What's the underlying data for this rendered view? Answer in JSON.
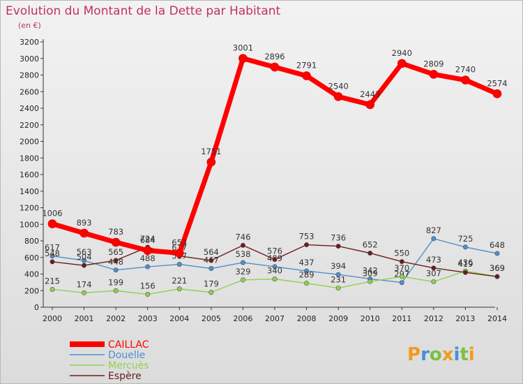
{
  "chart_data": {
    "type": "line",
    "title": "Evolution du Montant de la Dette par Habitant",
    "subtitle": "(en €)",
    "categories": [
      "2000",
      "2001",
      "2002",
      "2003",
      "2004",
      "2005",
      "2006",
      "2007",
      "2008",
      "2009",
      "2010",
      "2011",
      "2012",
      "2013",
      "2014"
    ],
    "ylim": [
      0,
      3200
    ],
    "yticks": [
      0,
      200,
      400,
      600,
      800,
      1000,
      1200,
      1400,
      1600,
      1800,
      2000,
      2200,
      2400,
      2600,
      2800,
      3000,
      3200
    ],
    "grid": false,
    "legend_position": "bottom-left",
    "series": [
      {
        "name": "CAILLAC",
        "color": "#ff0000",
        "values": [
          1006,
          893,
          783,
          684,
          653,
          1751,
          3001,
          2896,
          2791,
          2540,
          2443,
          2940,
          2809,
          2740,
          2574
        ]
      },
      {
        "name": "Douelle",
        "color": "#4d8fca",
        "values": [
          617,
          563,
          448,
          488,
          517,
          467,
          538,
          489,
          437,
          394,
          342,
          297,
          827,
          725,
          648
        ]
      },
      {
        "name": "Mercuès",
        "color": "#8fd14f",
        "values": [
          215,
          174,
          199,
          156,
          221,
          179,
          329,
          340,
          289,
          231,
          309,
          370,
          307,
          436,
          369
        ]
      },
      {
        "name": "Espère",
        "color": "#6b1c1c",
        "values": [
          548,
          504,
          565,
          724,
          617,
          564,
          746,
          576,
          753,
          736,
          652,
          550,
          473,
          419,
          369
        ]
      }
    ]
  },
  "watermark": "Proxiti"
}
